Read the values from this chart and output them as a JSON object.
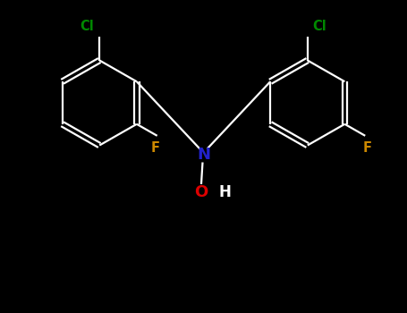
{
  "background_color": "#000000",
  "bond_color": "#ffffff",
  "N_color": "#2222cc",
  "O_color": "#dd0000",
  "Cl_color": "#008800",
  "F_color": "#cc8800",
  "H_color": "#ffffff",
  "figsize": [
    4.55,
    3.5
  ],
  "dpi": 100,
  "xlim": [
    0,
    9.0
  ],
  "ylim": [
    0,
    7.0
  ]
}
